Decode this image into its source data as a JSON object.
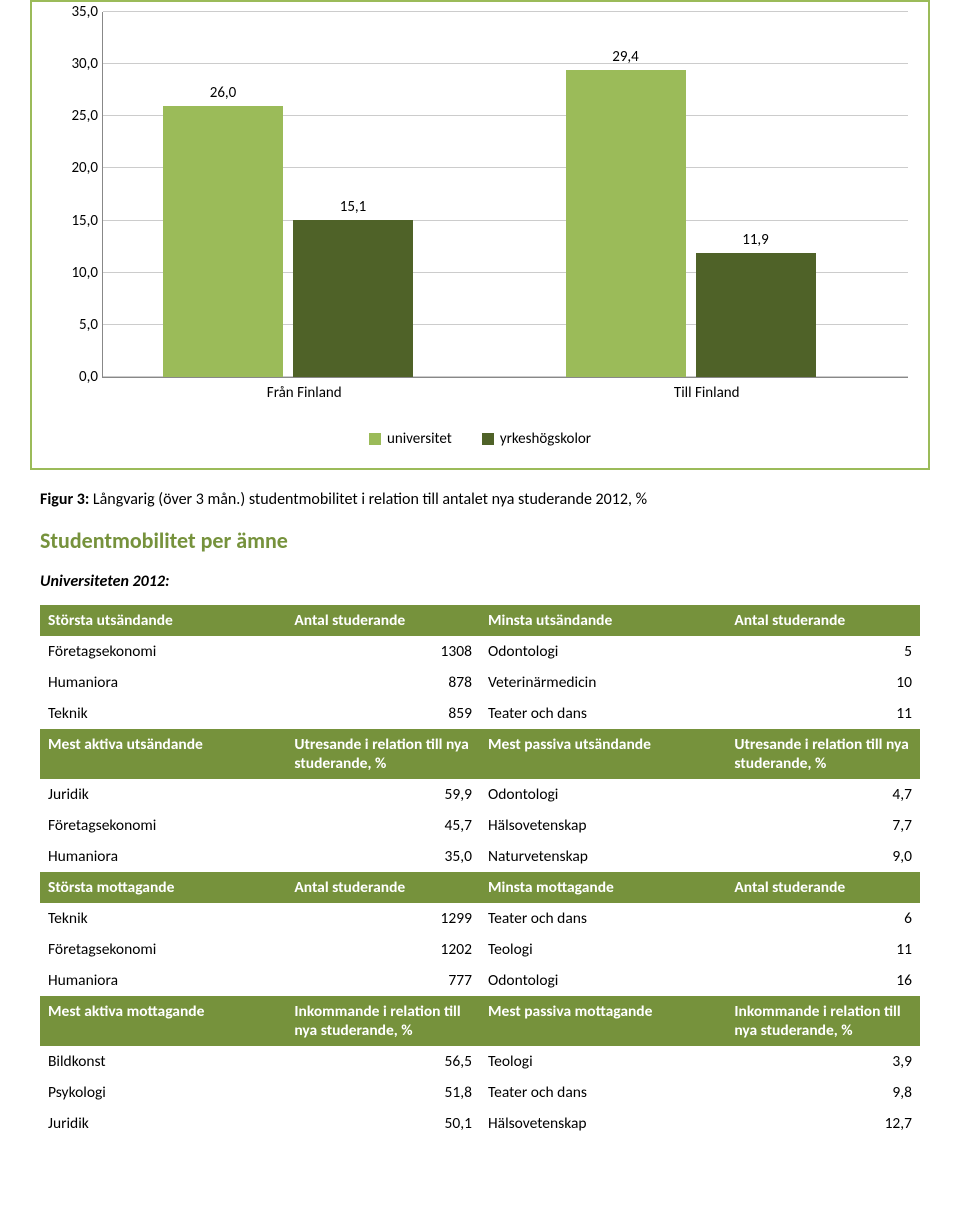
{
  "chart": {
    "type": "bar",
    "categories": [
      "Från Finland",
      "Till Finland"
    ],
    "series": [
      {
        "name": "universitet",
        "color": "#9bbb59",
        "values": [
          26.0,
          29.4
        ],
        "labels": [
          "26,0",
          "29,4"
        ]
      },
      {
        "name": "yrkeshögskolor",
        "color": "#4f6228",
        "values": [
          15.1,
          11.9
        ],
        "labels": [
          "15,1",
          "11,9"
        ]
      }
    ],
    "ymax": 35.0,
    "ytick_step": 5.0,
    "yticks": [
      "0,0",
      "5,0",
      "10,0",
      "15,0",
      "20,0",
      "25,0",
      "30,0",
      "35,0"
    ],
    "border_color": "#9bbb59",
    "bg": "#ffffff",
    "grid_color": "#cccccc"
  },
  "caption_prefix": "Figur 3:",
  "caption_text": " Långvarig (över 3 mån.) studentmobilitet i relation till antalet nya studerande 2012, %",
  "heading": "Studentmobilitet per ämne",
  "subheading": "Universiteten 2012:",
  "table1": {
    "header1": [
      "Största utsändande",
      "Antal studerande",
      "Minsta utsändande",
      "Antal studerande"
    ],
    "rows1": [
      [
        "Företagsekonomi",
        "1308",
        "Odontologi",
        "5"
      ],
      [
        "Humaniora",
        "878",
        "Veterinärmedicin",
        "10"
      ],
      [
        "Teknik",
        "859",
        "Teater och dans",
        "11"
      ]
    ],
    "mid1": [
      "Mest aktiva utsändande",
      "Utresande i relation till nya studerande, %",
      "Mest passiva utsändande",
      "Utresande i relation till nya studerande, %"
    ],
    "rows1b": [
      [
        "Juridik",
        "59,9",
        "Odontologi",
        "4,7"
      ],
      [
        "Företagsekonomi",
        "45,7",
        "Hälsovetenskap",
        "7,7"
      ],
      [
        "Humaniora",
        "35,0",
        "Naturvetenskap",
        "9,0"
      ]
    ],
    "header2": [
      "Största mottagande",
      "Antal studerande",
      "Minsta mottagande",
      "Antal studerande"
    ],
    "rows2": [
      [
        "Teknik",
        "1299",
        "Teater och dans",
        "6"
      ],
      [
        "Företagsekonomi",
        "1202",
        "Teologi",
        "11"
      ],
      [
        "Humaniora",
        "777",
        "Odontologi",
        "16"
      ]
    ],
    "mid2": [
      "Mest aktiva mottagande",
      "Inkommande i relation till nya studerande, %",
      "Mest passiva mottagande",
      "Inkommande i relation till nya studerande, %"
    ],
    "rows2b": [
      [
        "Bildkonst",
        "56,5",
        "Teologi",
        "3,9"
      ],
      [
        "Psykologi",
        "51,8",
        "Teater och dans",
        "9,8"
      ],
      [
        "Juridik",
        "50,1",
        "Hälsovetenskap",
        "12,7"
      ]
    ]
  }
}
